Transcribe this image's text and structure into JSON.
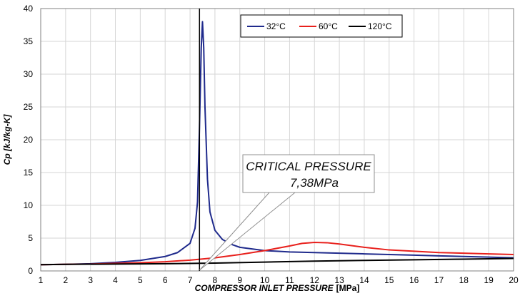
{
  "chart_data": {
    "type": "line",
    "title": "",
    "xlabel": "COMPRESSOR INLET PRESSURE",
    "xlabel_unit": "[MPa]",
    "ylabel": "Cp [kJ/kg-K]",
    "xlim": [
      1,
      20
    ],
    "ylim": [
      0,
      40
    ],
    "xticks": [
      1,
      2,
      3,
      4,
      5,
      6,
      7,
      8,
      9,
      10,
      11,
      12,
      13,
      14,
      15,
      16,
      17,
      18,
      19,
      20
    ],
    "yticks": [
      0,
      5,
      10,
      15,
      20,
      25,
      30,
      35,
      40
    ],
    "grid": true,
    "legend_position": "top-right",
    "series": [
      {
        "name": "32°C",
        "color": "#1f2a8c",
        "x": [
          1,
          2,
          3,
          4,
          5,
          6,
          6.5,
          7,
          7.2,
          7.3,
          7.38,
          7.45,
          7.5,
          7.55,
          7.6,
          7.7,
          7.8,
          8,
          8.3,
          8.7,
          9,
          10,
          11,
          12,
          13,
          14,
          15,
          16,
          17,
          18,
          19,
          20
        ],
        "y": [
          0.95,
          1.0,
          1.1,
          1.3,
          1.6,
          2.2,
          2.8,
          4.2,
          6.5,
          10.5,
          22.0,
          34.0,
          38.0,
          34.0,
          25.0,
          14.0,
          9.0,
          6.2,
          4.8,
          4.0,
          3.6,
          3.1,
          2.9,
          2.8,
          2.7,
          2.6,
          2.5,
          2.4,
          2.3,
          2.2,
          2.1,
          2.0
        ]
      },
      {
        "name": "60°C",
        "color": "#e8201c",
        "x": [
          1,
          2,
          3,
          4,
          5,
          6,
          7,
          8,
          9,
          10,
          11,
          11.5,
          12,
          12.5,
          13,
          14,
          15,
          16,
          17,
          18,
          19,
          20
        ],
        "y": [
          0.95,
          1.0,
          1.05,
          1.15,
          1.25,
          1.4,
          1.65,
          2.0,
          2.5,
          3.1,
          3.8,
          4.2,
          4.35,
          4.3,
          4.1,
          3.6,
          3.2,
          3.0,
          2.8,
          2.7,
          2.6,
          2.5
        ]
      },
      {
        "name": "120°C",
        "color": "#000000",
        "x": [
          1,
          2,
          4,
          6,
          8,
          10,
          12,
          14,
          16,
          18,
          20
        ],
        "y": [
          0.95,
          1.0,
          1.05,
          1.1,
          1.2,
          1.35,
          1.5,
          1.6,
          1.7,
          1.8,
          1.9
        ]
      }
    ],
    "reference_line": {
      "x": 7.38
    },
    "annotation": {
      "line1": "CRITICAL PRESSURE",
      "line2": "7,38MPa"
    }
  }
}
